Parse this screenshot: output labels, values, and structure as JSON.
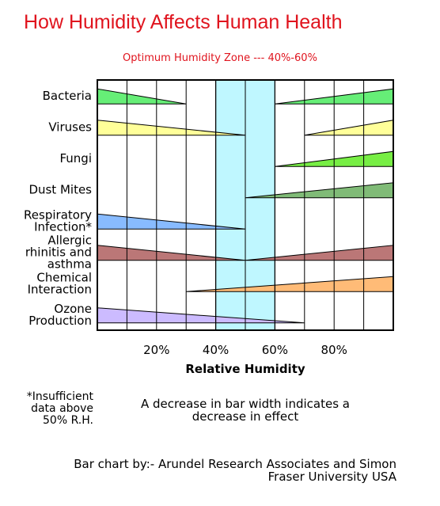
{
  "title": "How Humidity Affects Human Health",
  "subtitle": "Optimum Humidity Zone --- 40%-60%",
  "footnote": "*Insufficient\ndata above\n50% R.H.",
  "note": "A decrease in bar width indicates a decrease in effect",
  "credit": "Bar chart by:- Arundel Research Associates and Simon\nFraser University USA",
  "chart_data": {
    "type": "bar",
    "xlabel": "Relative Humidity",
    "xlim": [
      0,
      100
    ],
    "x_ticks": [
      20,
      40,
      60,
      80
    ],
    "x_tick_labels": [
      "20%",
      "40%",
      "60%",
      "80%"
    ],
    "grid": true,
    "optimum_zone": {
      "from": 40,
      "to": 60,
      "color": "#bff7ff"
    },
    "series": [
      {
        "name": "Bacteria",
        "color": "#66ee77",
        "segments": [
          {
            "from": 0,
            "to": 30,
            "direction": "decreasing"
          },
          {
            "from": 60,
            "to": 100,
            "direction": "increasing"
          }
        ]
      },
      {
        "name": "Viruses",
        "color": "#ffff99",
        "segments": [
          {
            "from": 0,
            "to": 50,
            "direction": "decreasing"
          },
          {
            "from": 70,
            "to": 100,
            "direction": "increasing"
          }
        ]
      },
      {
        "name": "Fungi",
        "color": "#77ee44",
        "segments": [
          {
            "from": 60,
            "to": 100,
            "direction": "increasing"
          }
        ]
      },
      {
        "name": "Dust Mites",
        "color": "#80bb77",
        "segments": [
          {
            "from": 50,
            "to": 100,
            "direction": "increasing"
          }
        ]
      },
      {
        "name": "Respiratory Infection*",
        "color": "#88bbff",
        "segments": [
          {
            "from": 0,
            "to": 50,
            "direction": "decreasing"
          }
        ]
      },
      {
        "name": "Allergic rhinitis and asthma",
        "color": "#bb7777",
        "segments": [
          {
            "from": 0,
            "to": 50,
            "direction": "decreasing"
          },
          {
            "from": 50,
            "to": 100,
            "direction": "increasing"
          }
        ]
      },
      {
        "name": "Chemical Interaction",
        "color": "#ffbb77",
        "segments": [
          {
            "from": 30,
            "to": 100,
            "direction": "increasing"
          }
        ]
      },
      {
        "name": "Ozone Production",
        "color": "#ccbbff",
        "segments": [
          {
            "from": 0,
            "to": 70,
            "direction": "decreasing"
          }
        ]
      }
    ]
  }
}
